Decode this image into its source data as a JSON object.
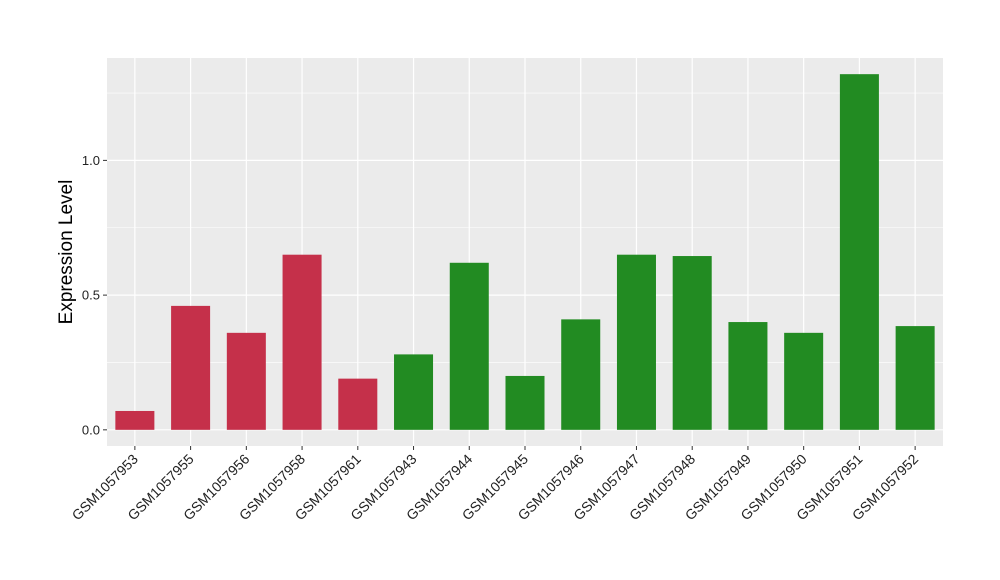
{
  "chart_data": {
    "type": "bar",
    "title": "",
    "xlabel": "",
    "ylabel": "Expression Level",
    "ylim": [
      -0.06,
      1.38
    ],
    "yticks": [
      0.0,
      0.5,
      1.0
    ],
    "ytick_labels": [
      "0.0",
      "0.5",
      "1.0"
    ],
    "grid": true,
    "legend": "none",
    "categories": [
      "GSM1057953",
      "GSM1057955",
      "GSM1057956",
      "GSM1057958",
      "GSM1057961",
      "GSM1057943",
      "GSM1057944",
      "GSM1057945",
      "GSM1057946",
      "GSM1057947",
      "GSM1057948",
      "GSM1057949",
      "GSM1057950",
      "GSM1057951",
      "GSM1057952"
    ],
    "values": [
      0.07,
      0.46,
      0.36,
      0.65,
      0.19,
      0.28,
      0.62,
      0.2,
      0.41,
      0.65,
      0.645,
      0.4,
      0.36,
      1.32,
      0.385
    ],
    "bar_colors": [
      "#c5304a",
      "#c5304a",
      "#c5304a",
      "#c5304a",
      "#c5304a",
      "#228b22",
      "#228b22",
      "#228b22",
      "#228b22",
      "#228b22",
      "#228b22",
      "#228b22",
      "#228b22",
      "#228b22",
      "#228b22"
    ],
    "panel_background": "#ebebeb",
    "grid_color": "#ffffff"
  }
}
